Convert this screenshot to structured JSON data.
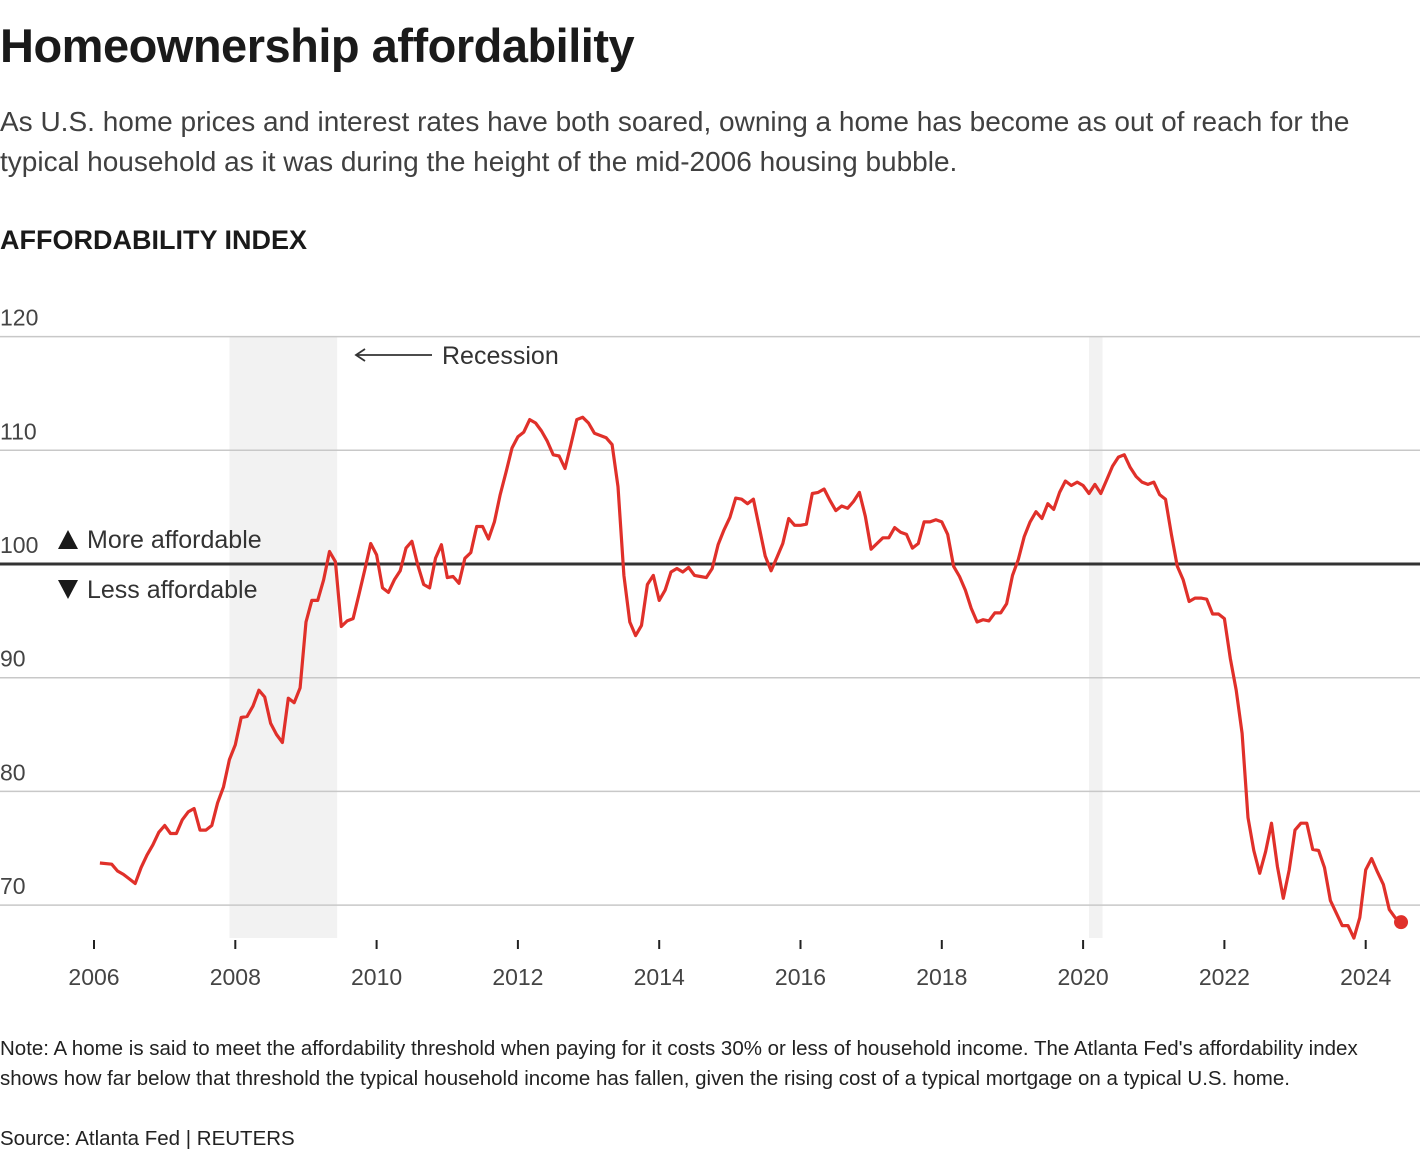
{
  "title": "Homeownership affordability",
  "subtitle": "As U.S. home prices and interest rates have both soared, owning a home has become as out of reach for the typical household as it was during the height of the mid-2006 housing bubble.",
  "note": "Note: A home is said to meet the affordability threshold when paying for it costs 30% or less of household income. The Atlanta Fed's affordability index shows how far below that threshold the typical household income has fallen, given the rising cost of a typical mortgage on a typical U.S. home.",
  "source": "Source: Atlanta Fed | REUTERS",
  "colors": {
    "line": "#e0302a",
    "recession": "#f2f2f2",
    "baseline": "#333333",
    "grid": "#c8c8c8"
  },
  "chart_data": {
    "type": "line",
    "ylabel": "AFFORDABILITY INDEX",
    "ylim": [
      67,
      120
    ],
    "yticks": [
      70,
      80,
      90,
      100,
      110,
      120
    ],
    "xticks": [
      "2006",
      "2008",
      "2010",
      "2012",
      "2014",
      "2016",
      "2018",
      "2020",
      "2022",
      "2024"
    ],
    "grid": true,
    "baseline": 100,
    "annotations": {
      "recession": "Recession",
      "above": "More affordable",
      "below": "Less affordable"
    },
    "recessions": [
      [
        "2007-12",
        "2009-06"
      ],
      [
        "2020-02",
        "2020-04"
      ]
    ],
    "series": [
      {
        "points": [
          [
            "2006-02",
            73.7
          ],
          [
            "2006-04",
            73.6
          ],
          [
            "2006-05",
            73.0
          ],
          [
            "2006-06",
            72.7
          ],
          [
            "2006-07",
            72.3
          ],
          [
            "2006-08",
            71.9
          ],
          [
            "2006-09",
            73.3
          ],
          [
            "2006-10",
            74.4
          ],
          [
            "2006-11",
            75.3
          ],
          [
            "2006-12",
            76.4
          ],
          [
            "2007-01",
            77.0
          ],
          [
            "2007-02",
            76.3
          ],
          [
            "2007-03",
            76.3
          ],
          [
            "2007-04",
            77.5
          ],
          [
            "2007-05",
            78.2
          ],
          [
            "2007-06",
            78.5
          ],
          [
            "2007-07",
            76.6
          ],
          [
            "2007-08",
            76.6
          ],
          [
            "2007-09",
            77.0
          ],
          [
            "2007-10",
            79.0
          ],
          [
            "2007-11",
            80.4
          ],
          [
            "2007-12",
            82.8
          ],
          [
            "2008-01",
            84.1
          ],
          [
            "2008-02",
            86.5
          ],
          [
            "2008-03",
            86.6
          ],
          [
            "2008-04",
            87.5
          ],
          [
            "2008-05",
            88.9
          ],
          [
            "2008-06",
            88.3
          ],
          [
            "2008-07",
            86.0
          ],
          [
            "2008-08",
            85.0
          ],
          [
            "2008-09",
            84.3
          ],
          [
            "2008-10",
            88.2
          ],
          [
            "2008-11",
            87.8
          ],
          [
            "2008-12",
            89.1
          ],
          [
            "2009-01",
            94.9
          ],
          [
            "2009-02",
            96.8
          ],
          [
            "2009-03",
            96.8
          ],
          [
            "2009-04",
            98.6
          ],
          [
            "2009-05",
            101.1
          ],
          [
            "2009-06",
            100.2
          ],
          [
            "2009-07",
            94.5
          ],
          [
            "2009-08",
            95.0
          ],
          [
            "2009-09",
            95.2
          ],
          [
            "2009-10",
            97.3
          ],
          [
            "2009-11",
            99.5
          ],
          [
            "2009-12",
            101.8
          ],
          [
            "2010-01",
            100.8
          ],
          [
            "2010-02",
            97.9
          ],
          [
            "2010-03",
            97.5
          ],
          [
            "2010-04",
            98.6
          ],
          [
            "2010-05",
            99.4
          ],
          [
            "2010-06",
            101.4
          ],
          [
            "2010-07",
            102.0
          ],
          [
            "2010-08",
            99.9
          ],
          [
            "2010-09",
            98.2
          ],
          [
            "2010-10",
            97.9
          ],
          [
            "2010-11",
            100.5
          ],
          [
            "2010-12",
            101.7
          ],
          [
            "2011-01",
            98.8
          ],
          [
            "2011-02",
            98.9
          ],
          [
            "2011-03",
            98.3
          ],
          [
            "2011-04",
            100.5
          ],
          [
            "2011-05",
            101.0
          ],
          [
            "2011-06",
            103.3
          ],
          [
            "2011-07",
            103.3
          ],
          [
            "2011-08",
            102.2
          ],
          [
            "2011-09",
            103.7
          ],
          [
            "2011-10",
            106.1
          ],
          [
            "2011-11",
            108.1
          ],
          [
            "2011-12",
            110.2
          ],
          [
            "2012-01",
            111.2
          ],
          [
            "2012-02",
            111.6
          ],
          [
            "2012-03",
            112.7
          ],
          [
            "2012-04",
            112.4
          ],
          [
            "2012-05",
            111.7
          ],
          [
            "2012-06",
            110.8
          ],
          [
            "2012-07",
            109.6
          ],
          [
            "2012-08",
            109.5
          ],
          [
            "2012-09",
            108.4
          ],
          [
            "2012-10",
            110.5
          ],
          [
            "2012-11",
            112.7
          ],
          [
            "2012-12",
            112.9
          ],
          [
            "2013-01",
            112.4
          ],
          [
            "2013-02",
            111.5
          ],
          [
            "2013-03",
            111.3
          ],
          [
            "2013-04",
            111.1
          ],
          [
            "2013-05",
            110.5
          ],
          [
            "2013-06",
            106.8
          ],
          [
            "2013-07",
            99.0
          ],
          [
            "2013-08",
            94.9
          ],
          [
            "2013-09",
            93.7
          ],
          [
            "2013-10",
            94.6
          ],
          [
            "2013-11",
            98.2
          ],
          [
            "2013-12",
            99.0
          ],
          [
            "2014-01",
            96.8
          ],
          [
            "2014-02",
            97.7
          ],
          [
            "2014-03",
            99.3
          ],
          [
            "2014-04",
            99.6
          ],
          [
            "2014-05",
            99.3
          ],
          [
            "2014-06",
            99.7
          ],
          [
            "2014-07",
            99.0
          ],
          [
            "2014-08",
            98.9
          ],
          [
            "2014-09",
            98.8
          ],
          [
            "2014-10",
            99.6
          ],
          [
            "2014-11",
            101.7
          ],
          [
            "2014-12",
            103.0
          ],
          [
            "2015-01",
            104.1
          ],
          [
            "2015-02",
            105.8
          ],
          [
            "2015-03",
            105.7
          ],
          [
            "2015-04",
            105.3
          ],
          [
            "2015-05",
            105.7
          ],
          [
            "2015-06",
            103.2
          ],
          [
            "2015-07",
            100.7
          ],
          [
            "2015-08",
            99.4
          ],
          [
            "2015-09",
            100.6
          ],
          [
            "2015-10",
            101.8
          ],
          [
            "2015-11",
            104.0
          ],
          [
            "2015-12",
            103.4
          ],
          [
            "2016-01",
            103.4
          ],
          [
            "2016-02",
            103.5
          ],
          [
            "2016-03",
            106.2
          ],
          [
            "2016-04",
            106.3
          ],
          [
            "2016-05",
            106.6
          ],
          [
            "2016-06",
            105.6
          ],
          [
            "2016-07",
            104.7
          ],
          [
            "2016-08",
            105.1
          ],
          [
            "2016-09",
            104.9
          ],
          [
            "2016-10",
            105.5
          ],
          [
            "2016-11",
            106.3
          ],
          [
            "2016-12",
            104.2
          ],
          [
            "2017-01",
            101.3
          ],
          [
            "2017-02",
            101.8
          ],
          [
            "2017-03",
            102.3
          ],
          [
            "2017-04",
            102.3
          ],
          [
            "2017-05",
            103.2
          ],
          [
            "2017-06",
            102.8
          ],
          [
            "2017-07",
            102.6
          ],
          [
            "2017-08",
            101.4
          ],
          [
            "2017-09",
            101.8
          ],
          [
            "2017-10",
            103.7
          ],
          [
            "2017-11",
            103.7
          ],
          [
            "2017-12",
            103.9
          ],
          [
            "2018-01",
            103.7
          ],
          [
            "2018-02",
            102.6
          ],
          [
            "2018-03",
            99.8
          ],
          [
            "2018-04",
            98.9
          ],
          [
            "2018-05",
            97.7
          ],
          [
            "2018-06",
            96.1
          ],
          [
            "2018-07",
            94.9
          ],
          [
            "2018-08",
            95.1
          ],
          [
            "2018-09",
            95.0
          ],
          [
            "2018-10",
            95.7
          ],
          [
            "2018-11",
            95.7
          ],
          [
            "2018-12",
            96.5
          ],
          [
            "2019-01",
            99.0
          ],
          [
            "2019-02",
            100.4
          ],
          [
            "2019-03",
            102.4
          ],
          [
            "2019-04",
            103.7
          ],
          [
            "2019-05",
            104.6
          ],
          [
            "2019-06",
            104.0
          ],
          [
            "2019-07",
            105.3
          ],
          [
            "2019-08",
            104.8
          ],
          [
            "2019-09",
            106.3
          ],
          [
            "2019-10",
            107.3
          ],
          [
            "2019-11",
            106.9
          ],
          [
            "2019-12",
            107.2
          ],
          [
            "2020-01",
            106.9
          ],
          [
            "2020-02",
            106.2
          ],
          [
            "2020-03",
            107.0
          ],
          [
            "2020-04",
            106.2
          ],
          [
            "2020-05",
            107.4
          ],
          [
            "2020-06",
            108.6
          ],
          [
            "2020-07",
            109.4
          ],
          [
            "2020-08",
            109.6
          ],
          [
            "2020-09",
            108.5
          ],
          [
            "2020-10",
            107.7
          ],
          [
            "2020-11",
            107.2
          ],
          [
            "2020-12",
            107.0
          ],
          [
            "2021-01",
            107.2
          ],
          [
            "2021-02",
            106.1
          ],
          [
            "2021-03",
            105.7
          ],
          [
            "2021-04",
            102.6
          ],
          [
            "2021-05",
            99.8
          ],
          [
            "2021-06",
            98.6
          ],
          [
            "2021-07",
            96.7
          ],
          [
            "2021-08",
            97.0
          ],
          [
            "2021-09",
            97.0
          ],
          [
            "2021-10",
            96.9
          ],
          [
            "2021-11",
            95.6
          ],
          [
            "2021-12",
            95.6
          ],
          [
            "2022-01",
            95.2
          ],
          [
            "2022-02",
            91.7
          ],
          [
            "2022-03",
            88.9
          ],
          [
            "2022-04",
            85.1
          ],
          [
            "2022-05",
            77.7
          ],
          [
            "2022-06",
            74.8
          ],
          [
            "2022-07",
            72.8
          ],
          [
            "2022-08",
            74.7
          ],
          [
            "2022-09",
            77.2
          ],
          [
            "2022-10",
            73.4
          ],
          [
            "2022-11",
            70.6
          ],
          [
            "2022-12",
            73.1
          ],
          [
            "2023-01",
            76.6
          ],
          [
            "2023-02",
            77.2
          ],
          [
            "2023-03",
            77.2
          ],
          [
            "2023-04",
            74.9
          ],
          [
            "2023-05",
            74.8
          ],
          [
            "2023-06",
            73.3
          ],
          [
            "2023-07",
            70.4
          ],
          [
            "2023-08",
            69.3
          ],
          [
            "2023-09",
            68.2
          ],
          [
            "2023-10",
            68.2
          ],
          [
            "2023-11",
            67.1
          ],
          [
            "2023-12",
            68.9
          ],
          [
            "2024-01",
            73.1
          ],
          [
            "2024-02",
            74.1
          ],
          [
            "2024-03",
            72.9
          ],
          [
            "2024-04",
            71.8
          ],
          [
            "2024-05",
            69.6
          ],
          [
            "2024-06",
            68.9
          ],
          [
            "2024-07",
            68.5
          ]
        ]
      }
    ]
  }
}
